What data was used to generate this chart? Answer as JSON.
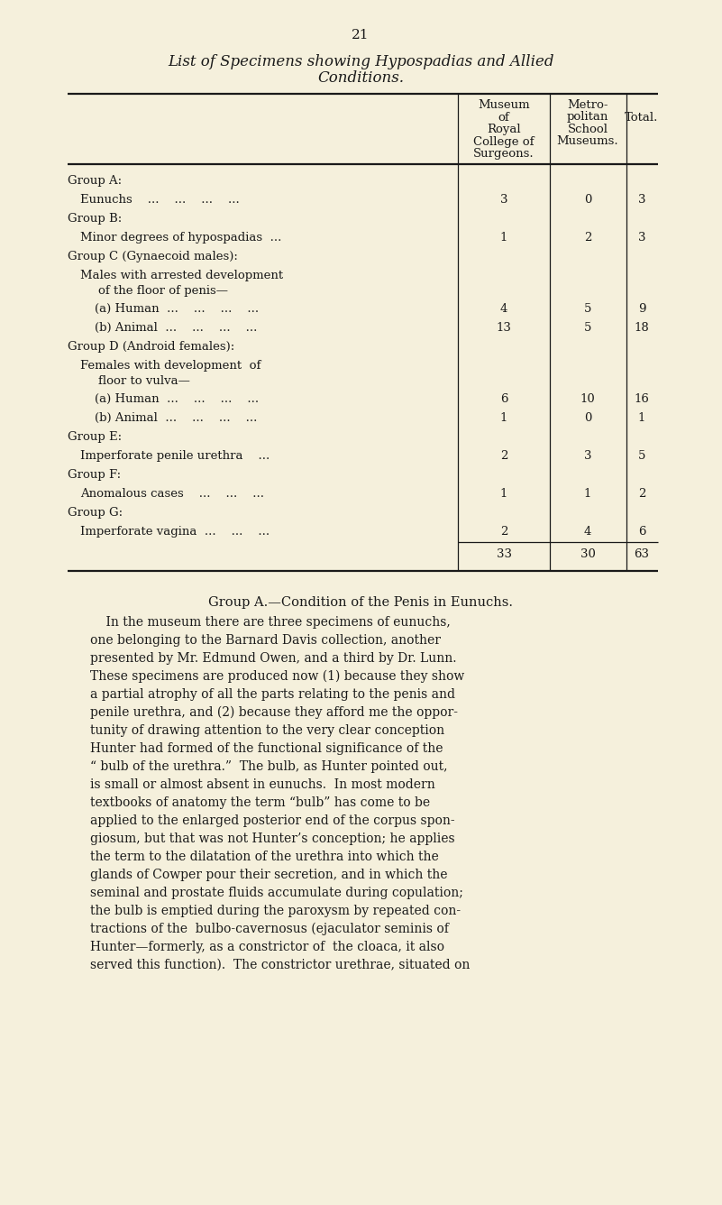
{
  "page_number": "21",
  "title_line1": "List of Specimens showing Hypospadias and Allied",
  "title_line2": "Conditions.",
  "bg_color": "#F5F0DC",
  "text_color": "#1a1a1a",
  "table_rows": [
    {
      "label": "Group A:",
      "sub": null,
      "vals": [
        null,
        null,
        null
      ],
      "indent": 0,
      "bold": true,
      "total_row": false
    },
    {
      "label": "Eunuchs    ...    ...    ...    ...",
      "sub": null,
      "vals": [
        "3",
        "0",
        "3"
      ],
      "indent": 1,
      "bold": false,
      "total_row": false
    },
    {
      "label": "Group B:",
      "sub": null,
      "vals": [
        null,
        null,
        null
      ],
      "indent": 0,
      "bold": true,
      "total_row": false
    },
    {
      "label": "Minor degrees of hypospadias  ...",
      "sub": null,
      "vals": [
        "1",
        "2",
        "3"
      ],
      "indent": 1,
      "bold": false,
      "total_row": false
    },
    {
      "label": "Group C (Gynaecoid males):",
      "sub": null,
      "vals": [
        null,
        null,
        null
      ],
      "indent": 0,
      "bold": true,
      "total_row": false
    },
    {
      "label": "Males with arrested development",
      "sub": "of the floor of penis—",
      "vals": [
        null,
        null,
        null
      ],
      "indent": 1,
      "bold": false,
      "total_row": false
    },
    {
      "label": "(a) Human  ...    ...    ...    ...",
      "sub": null,
      "vals": [
        "4",
        "5",
        "9"
      ],
      "indent": 2,
      "bold": false,
      "total_row": false
    },
    {
      "label": "(b) Animal  ...    ...    ...    ...",
      "sub": null,
      "vals": [
        "13",
        "5",
        "18"
      ],
      "indent": 2,
      "bold": false,
      "total_row": false
    },
    {
      "label": "Group D (Android females):",
      "sub": null,
      "vals": [
        null,
        null,
        null
      ],
      "indent": 0,
      "bold": true,
      "total_row": false
    },
    {
      "label": "Females with development  of",
      "sub": "floor to vulva—",
      "vals": [
        null,
        null,
        null
      ],
      "indent": 1,
      "bold": false,
      "total_row": false
    },
    {
      "label": "(a) Human  ...    ...    ...    ...",
      "sub": null,
      "vals": [
        "6",
        "10",
        "16"
      ],
      "indent": 2,
      "bold": false,
      "total_row": false
    },
    {
      "label": "(b) Animal  ...    ...    ...    ...",
      "sub": null,
      "vals": [
        "1",
        "0",
        "1"
      ],
      "indent": 2,
      "bold": false,
      "total_row": false
    },
    {
      "label": "Group E:",
      "sub": null,
      "vals": [
        null,
        null,
        null
      ],
      "indent": 0,
      "bold": true,
      "total_row": false
    },
    {
      "label": "Imperforate penile urethra    ...",
      "sub": null,
      "vals": [
        "2",
        "3",
        "5"
      ],
      "indent": 1,
      "bold": false,
      "total_row": false
    },
    {
      "label": "Group F:",
      "sub": null,
      "vals": [
        null,
        null,
        null
      ],
      "indent": 0,
      "bold": true,
      "total_row": false
    },
    {
      "label": "Anomalous cases    ...    ...    ...",
      "sub": null,
      "vals": [
        "1",
        "1",
        "2"
      ],
      "indent": 1,
      "bold": false,
      "total_row": false
    },
    {
      "label": "Group G:",
      "sub": null,
      "vals": [
        null,
        null,
        null
      ],
      "indent": 0,
      "bold": true,
      "total_row": false
    },
    {
      "label": "Imperforate vagina  ...    ...    ...",
      "sub": null,
      "vals": [
        "2",
        "4",
        "6"
      ],
      "indent": 1,
      "bold": false,
      "total_row": false
    },
    {
      "label": "",
      "sub": null,
      "vals": [
        "33",
        "30",
        "63"
      ],
      "indent": 0,
      "bold": false,
      "total_row": true
    }
  ],
  "section_heading_parts": [
    {
      "text": "G",
      "size": 11.5
    },
    {
      "text": "roup ",
      "size": 9
    },
    {
      "text": "A",
      "size": 11.5
    },
    {
      "text": ".—",
      "size": 9
    },
    {
      "text": "C",
      "size": 11.5
    },
    {
      "text": "ondition of the ",
      "size": 9
    },
    {
      "text": "P",
      "size": 11.5
    },
    {
      "text": "enis in ",
      "size": 9
    },
    {
      "text": "E",
      "size": 11.5
    },
    {
      "text": "unuchs.",
      "size": 9
    }
  ],
  "body_text": [
    "    In the museum there are three specimens of eunuchs,",
    "one belonging to the Barnard Davis collection, another",
    "presented by Mr. Edmund Owen, and a third by Dr. Lunn.",
    "These specimens are produced now (1) because they show",
    "a partial atrophy of all the parts relating to the penis and",
    "penile urethra, and (2) because they afford me the oppor-",
    "tunity of drawing attention to the very clear conception",
    "Hunter had formed of the functional significance of the",
    "“ bulb of the urethra.”  The bulb, as Hunter pointed out,",
    "is small or almost absent in eunuchs.  In most modern",
    "textbooks of anatomy the term “bulb” has come to be",
    "applied to the enlarged posterior end of the corpus spon-",
    "giosum, but that was not Hunter’s conception; he applies",
    "the term to the dilatation of the urethra into which the",
    "glands of Cowper pour their secretion, and in which the",
    "seminal and prostate fluids accumulate during copulation;",
    "the bulb is emptied during the paroxysm by repeated con-",
    "tractions of the  bulbo-cavernosus (ejaculator seminis of",
    "Hunter—formerly, as a constrictor of  the cloaca, it also",
    "served this function).  The constrictor urethrae, situated on"
  ]
}
